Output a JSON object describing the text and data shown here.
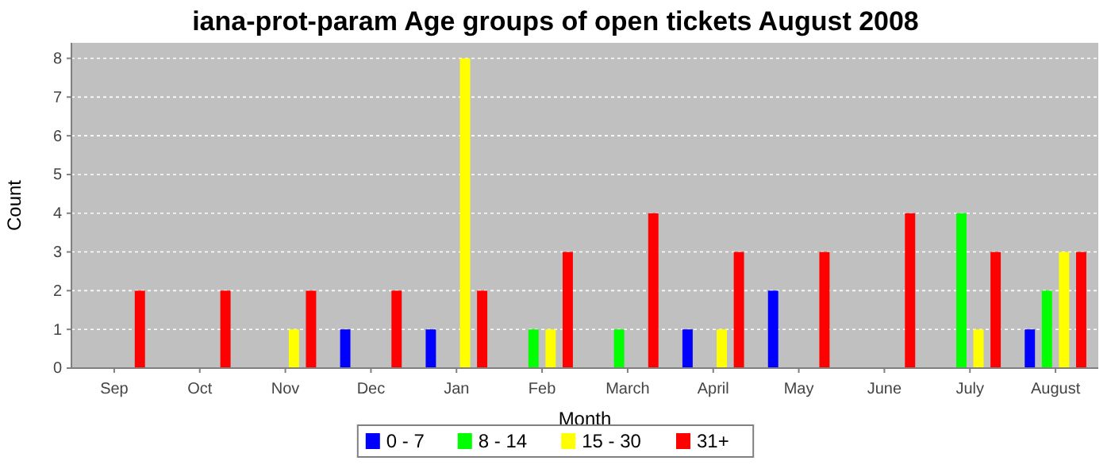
{
  "chart_data": {
    "type": "bar",
    "title": "iana-prot-param Age groups of open tickets August 2008",
    "xlabel": "Month",
    "ylabel": "Count",
    "categories": [
      "Sep",
      "Oct",
      "Nov",
      "Dec",
      "Jan",
      "Feb",
      "March",
      "April",
      "May",
      "June",
      "July",
      "August"
    ],
    "series": [
      {
        "name": "0 - 7",
        "color": "#0000ff",
        "values": [
          0,
          0,
          0,
          1,
          1,
          0,
          0,
          1,
          2,
          0,
          0,
          1
        ]
      },
      {
        "name": "8 - 14",
        "color": "#00ff00",
        "values": [
          0,
          0,
          0,
          0,
          0,
          1,
          1,
          0,
          0,
          0,
          4,
          2
        ]
      },
      {
        "name": "15 - 30",
        "color": "#ffff00",
        "values": [
          0,
          0,
          1,
          0,
          8,
          1,
          0,
          1,
          0,
          0,
          1,
          3
        ]
      },
      {
        "name": "31+",
        "color": "#ff0000",
        "values": [
          2,
          2,
          2,
          2,
          2,
          3,
          4,
          3,
          3,
          4,
          3,
          3
        ]
      }
    ],
    "ylim": [
      0,
      8.4
    ],
    "yticks": [
      0,
      1,
      2,
      3,
      4,
      5,
      6,
      7,
      8
    ],
    "grid": "y",
    "legend": "bottom"
  }
}
